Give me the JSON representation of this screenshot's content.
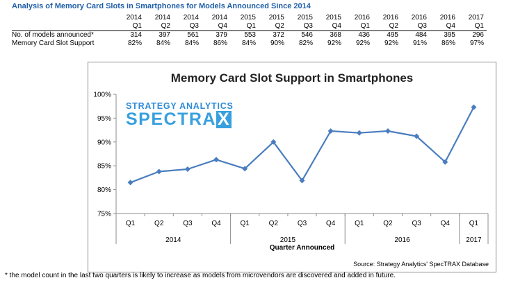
{
  "page": {
    "title": "Analysis of Memory Card Slots in Smartphones for Models Announced Since 2014",
    "footnote": "* the model count in the last two quarters is likely to increase as models from microvendors are discovered and added in future."
  },
  "table": {
    "years": [
      "2014",
      "2014",
      "2014",
      "2014",
      "2015",
      "2015",
      "2015",
      "2015",
      "2016",
      "2016",
      "2016",
      "2016",
      "2017"
    ],
    "quarters": [
      "Q1",
      "Q2",
      "Q3",
      "Q4",
      "Q1",
      "Q2",
      "Q3",
      "Q4",
      "Q1",
      "Q2",
      "Q3",
      "Q4",
      "Q1"
    ],
    "rows": [
      {
        "label": "No. of models announced*",
        "values": [
          "314",
          "397",
          "561",
          "379",
          "553",
          "372",
          "546",
          "368",
          "436",
          "495",
          "484",
          "395",
          "296"
        ]
      },
      {
        "label": "Memory Card Slot Support",
        "values": [
          "82%",
          "84%",
          "84%",
          "86%",
          "84%",
          "90%",
          "82%",
          "92%",
          "92%",
          "92%",
          "91%",
          "86%",
          "97%"
        ]
      }
    ]
  },
  "logo": {
    "line1": "STRATEGY ANALYTICS",
    "line2a": "SPECTRA",
    "line2b": "X"
  },
  "chart_data": {
    "type": "line",
    "title": "Memory Card Slot Support in Smartphones",
    "xlabel": "Quarter Announced",
    "ylabel": "",
    "categories": [
      "Q1",
      "Q2",
      "Q3",
      "Q4",
      "Q1",
      "Q2",
      "Q3",
      "Q4",
      "Q1",
      "Q2",
      "Q3",
      "Q4",
      "Q1"
    ],
    "year_groups": [
      {
        "label": "2014",
        "span": 4
      },
      {
        "label": "2015",
        "span": 4
      },
      {
        "label": "2016",
        "span": 4
      },
      {
        "label": "2017",
        "span": 1
      }
    ],
    "series": [
      {
        "name": "Memory Card Slot Support",
        "values": [
          81.5,
          83.8,
          84.3,
          86.3,
          84.4,
          90.0,
          81.9,
          92.3,
          91.9,
          92.3,
          91.2,
          85.8,
          97.3
        ]
      }
    ],
    "ylim": [
      75,
      100
    ],
    "yticks": [
      75,
      80,
      85,
      90,
      95,
      100
    ],
    "ytick_labels": [
      "75%",
      "80%",
      "85%",
      "90%",
      "95%",
      "100%"
    ],
    "grid": false,
    "source": "Source: Strategy Analytics' SpecTRAX Database",
    "line_color": "#4a7dbf"
  }
}
